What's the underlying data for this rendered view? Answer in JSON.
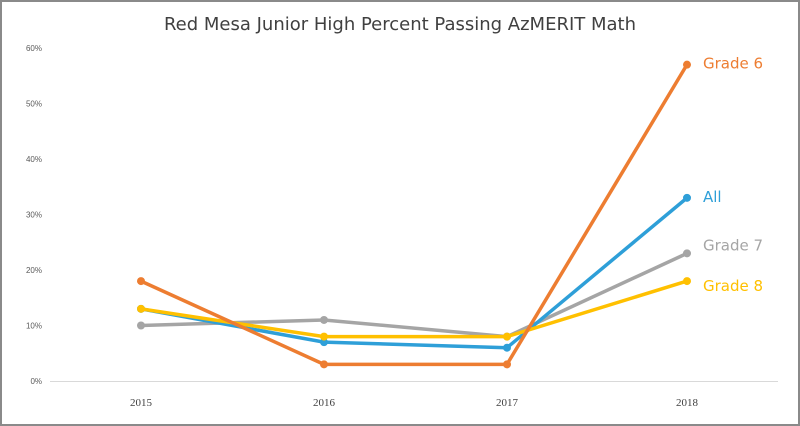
{
  "chart_data": {
    "type": "line",
    "title": "Red Mesa Junior High Percent Passing AzMERIT Math",
    "categories": [
      "2015",
      "2016",
      "2017",
      "2018"
    ],
    "ylim": [
      0,
      60
    ],
    "yticks": [
      "0%",
      "10%",
      "20%",
      "30%",
      "40%",
      "50%",
      "60%"
    ],
    "ytick_values": [
      0,
      10,
      20,
      30,
      40,
      50,
      60
    ],
    "grid": false,
    "legend": "inline labels at end of each line",
    "series": [
      {
        "name": "Grade 7",
        "color": "#a5a5a5",
        "values": [
          10,
          11,
          8,
          23
        ]
      },
      {
        "name": "All",
        "color": "#2e9fd8",
        "values": [
          13,
          7,
          6,
          33
        ]
      },
      {
        "name": "Grade 8",
        "color": "#ffc000",
        "values": [
          13,
          8,
          8,
          18
        ]
      },
      {
        "name": "Grade 6",
        "color": "#ed7d31",
        "values": [
          18,
          3,
          3,
          57
        ]
      }
    ]
  }
}
